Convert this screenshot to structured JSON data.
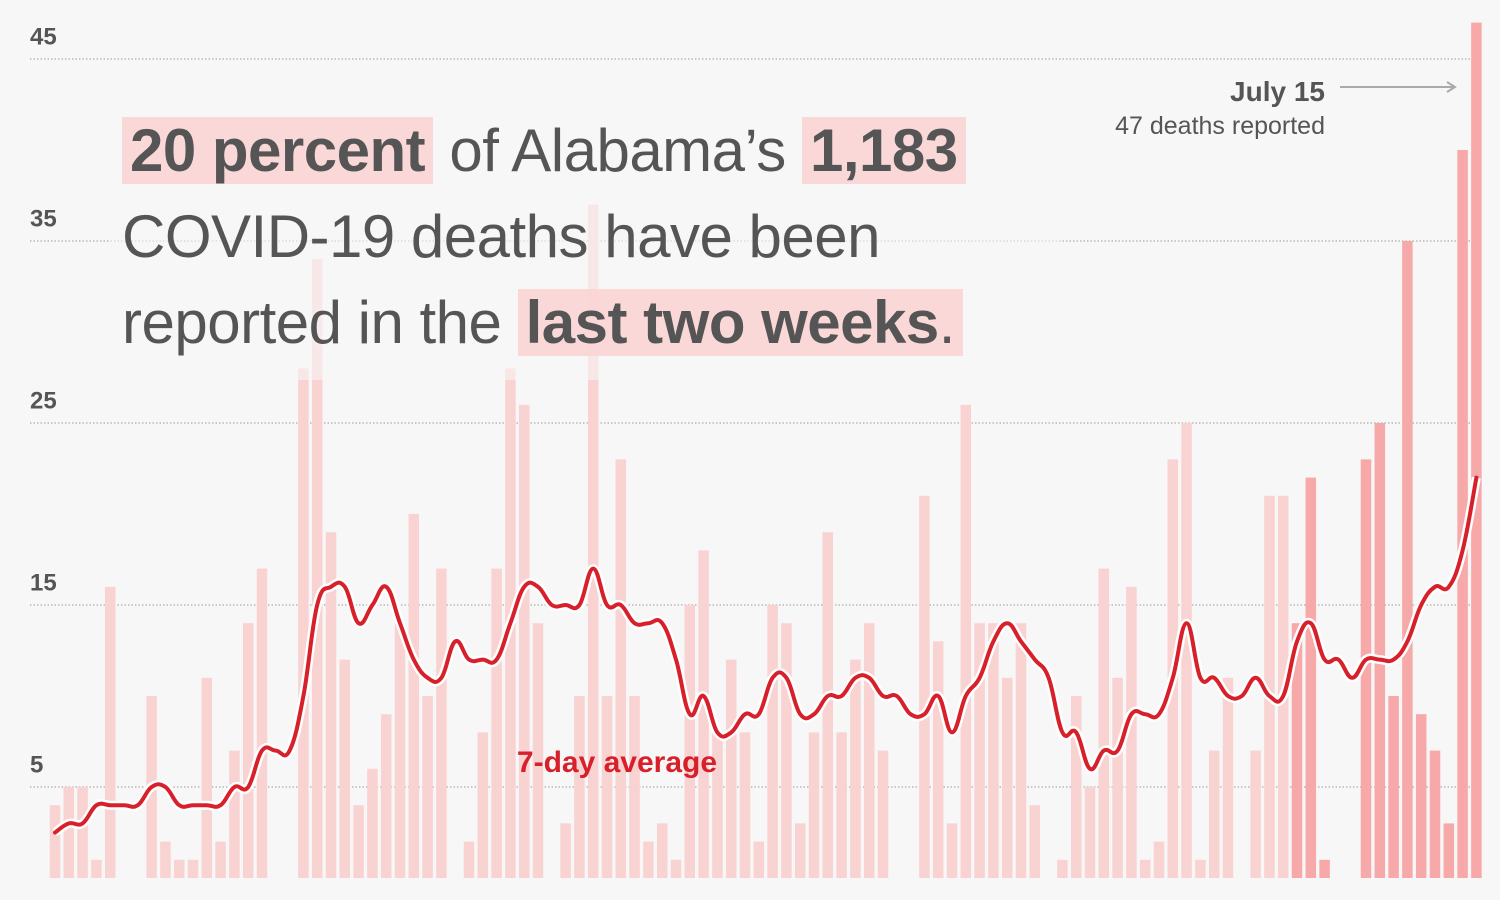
{
  "chart_data": {
    "type": "bar",
    "headline": [
      "20 percent",
      "of Alabama’s",
      "1,183",
      "COVID-19 deaths have been",
      "reported in the",
      "last two weeks",
      "."
    ],
    "annotation": {
      "title": "July 15",
      "text": "47 deaths reported"
    },
    "ylim": [
      0,
      48
    ],
    "yticks": [
      5,
      15,
      25,
      35,
      45
    ],
    "grid": true,
    "series": [
      {
        "type": "bar",
        "color": "#f9d2d2",
        "values": [
          4,
          5,
          5,
          1,
          16,
          0,
          0,
          10,
          2,
          1,
          1,
          11,
          2,
          7,
          14,
          17,
          0,
          0,
          28,
          34,
          19,
          12,
          4,
          6,
          9,
          14,
          20,
          10,
          17,
          0,
          2,
          8,
          17,
          28,
          26,
          14,
          0,
          3,
          10,
          37,
          10,
          23,
          10,
          2,
          3,
          1,
          15,
          18,
          8,
          12,
          8,
          2,
          15,
          14,
          3,
          8,
          19,
          8,
          12,
          14,
          7,
          0,
          0,
          21,
          13,
          3,
          26,
          14,
          14,
          11,
          14,
          4,
          0,
          1,
          10,
          5,
          17,
          11,
          16,
          1,
          2,
          23,
          25,
          1,
          7,
          11,
          0,
          7,
          21,
          21,
          null,
          null,
          null,
          null,
          null,
          null,
          null,
          null,
          null,
          null,
          null,
          null,
          null,
          null
        ]
      },
      {
        "type": "bar",
        "color": "#f7a8a8",
        "values": [
          null,
          null,
          null,
          null,
          null,
          null,
          null,
          null,
          null,
          null,
          null,
          null,
          null,
          null,
          null,
          null,
          null,
          null,
          null,
          null,
          null,
          null,
          null,
          null,
          null,
          null,
          null,
          null,
          null,
          null,
          null,
          null,
          null,
          null,
          null,
          null,
          null,
          null,
          null,
          null,
          null,
          null,
          null,
          null,
          null,
          null,
          null,
          null,
          null,
          null,
          null,
          null,
          null,
          null,
          null,
          null,
          null,
          null,
          null,
          null,
          null,
          null,
          null,
          null,
          null,
          null,
          null,
          null,
          null,
          null,
          null,
          null,
          null,
          null,
          null,
          null,
          null,
          null,
          null,
          null,
          null,
          null,
          null,
          null,
          null,
          null,
          null,
          null,
          null,
          null,
          14,
          22,
          1,
          0,
          0,
          23,
          25,
          10,
          35,
          9,
          7,
          3,
          40,
          47
        ]
      },
      {
        "type": "line",
        "name": "7-day average",
        "color": "#d7202a",
        "values": [
          2.5,
          3,
          3,
          4,
          4,
          4,
          4,
          5,
          5,
          4,
          4,
          4,
          4,
          5,
          5,
          7,
          7,
          7,
          10,
          15,
          16,
          16,
          14,
          15,
          16,
          14,
          12,
          11,
          11,
          13,
          12,
          12,
          12,
          14,
          16,
          16,
          15,
          15,
          15,
          17,
          15,
          15,
          14,
          14,
          14,
          12,
          9,
          10,
          8,
          8,
          9,
          9,
          11,
          11,
          9,
          9,
          10,
          10,
          11,
          11,
          10,
          10,
          9,
          9,
          10,
          8,
          10,
          11,
          13,
          14,
          13,
          12,
          11,
          8,
          8,
          6,
          7,
          7,
          9,
          9,
          9,
          11,
          14,
          11,
          11,
          10,
          10,
          11,
          10,
          10,
          13,
          14,
          12,
          12,
          11,
          12,
          12,
          12,
          13,
          15,
          16,
          16,
          18,
          22
        ]
      }
    ]
  }
}
